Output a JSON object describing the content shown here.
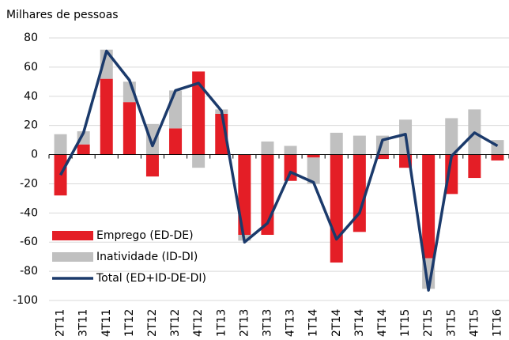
{
  "chart_data": {
    "type": "bar",
    "stacked": true,
    "y_label": "Milhares de pessoas",
    "categories": [
      "2T11",
      "3T11",
      "4T11",
      "1T12",
      "2T12",
      "3T12",
      "4T12",
      "1T13",
      "2T13",
      "3T13",
      "4T13",
      "1T14",
      "2T14",
      "3T14",
      "4T14",
      "1T15",
      "2T15",
      "3T15",
      "4T15",
      "1T16"
    ],
    "series": [
      {
        "name": "Emprego (ED-DE)",
        "type": "bar",
        "color": "#e41e26",
        "values": [
          -28,
          7,
          52,
          36,
          -15,
          18,
          57,
          28,
          -55,
          -55,
          -18,
          -2,
          -74,
          -53,
          -3,
          -9,
          -71,
          -27,
          -16,
          -4
        ]
      },
      {
        "name": "Inatividade (ID-DI)",
        "type": "bar",
        "color": "#c0c0c0",
        "values": [
          14,
          9,
          20,
          14,
          21,
          26,
          -9,
          3,
          -4,
          9,
          6,
          -18,
          15,
          13,
          13,
          24,
          -21,
          25,
          31,
          10
        ]
      },
      {
        "name": "Total (ED+ID-DE-DI)",
        "type": "line",
        "color": "#1b3a6b",
        "values": [
          -14,
          15,
          71,
          51,
          6,
          44,
          49,
          30,
          -60,
          -47,
          -12,
          -19,
          -58,
          -40,
          10,
          14,
          -93,
          -1,
          15,
          6
        ]
      }
    ],
    "ylim": [
      -100,
      80
    ],
    "yticks": [
      -100,
      -80,
      -60,
      -40,
      -20,
      0,
      20,
      40,
      60,
      80
    ],
    "grid": true,
    "legend": "lower-left"
  }
}
